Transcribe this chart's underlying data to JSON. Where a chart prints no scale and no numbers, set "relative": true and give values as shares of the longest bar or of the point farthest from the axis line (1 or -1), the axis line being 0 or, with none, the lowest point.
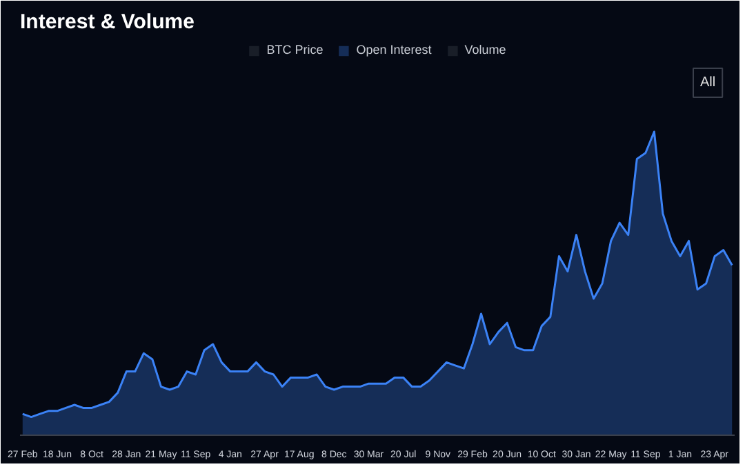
{
  "chart_data": {
    "type": "area",
    "title": "Interest & Volume",
    "annotations": [
      "All"
    ],
    "relative": true,
    "legend": "top",
    "categories": [
      "27 Feb",
      null,
      null,
      null,
      "18 Jun",
      null,
      null,
      null,
      "8 Oct",
      null,
      null,
      null,
      "28 Jan",
      null,
      null,
      null,
      "21 May",
      null,
      null,
      null,
      "11 Sep",
      null,
      null,
      null,
      "4 Jan",
      null,
      null,
      null,
      "27 Apr",
      null,
      null,
      null,
      "17 Aug",
      null,
      null,
      null,
      "8 Dec",
      null,
      null,
      null,
      "30 Mar",
      null,
      null,
      null,
      "20 Jul",
      null,
      null,
      null,
      "9 Nov",
      null,
      null,
      null,
      "29 Feb",
      null,
      null,
      null,
      "20 Jun",
      null,
      null,
      null,
      "10 Oct",
      null,
      null,
      null,
      "30 Jan",
      null,
      null,
      null,
      "22 May",
      null,
      null,
      null,
      "11 Sep",
      null,
      null,
      null,
      "1 Jan",
      null,
      null,
      null,
      "23 Apr",
      null,
      null
    ],
    "series": [
      {
        "name": "BTC Price",
        "color": "#4a4e58",
        "values": [
          null,
          null,
          null,
          null,
          null,
          null,
          null,
          null,
          null,
          null,
          null,
          null,
          null,
          null,
          null,
          null,
          null,
          null,
          null,
          null,
          null,
          null,
          null,
          null,
          null,
          null,
          null,
          null,
          null,
          null,
          null,
          null,
          null,
          null,
          null,
          null,
          null,
          null,
          null,
          null,
          null,
          null,
          null,
          null,
          null,
          null,
          null,
          null,
          null,
          null,
          null,
          null,
          null,
          null,
          null,
          null,
          null,
          null,
          null,
          null,
          null,
          null,
          null,
          null,
          null,
          null,
          null,
          null,
          null,
          null,
          null,
          null,
          null,
          null,
          null,
          null,
          null,
          null,
          null,
          null,
          null,
          null,
          null
        ]
      },
      {
        "name": "Open Interest",
        "color": "#3b82f6",
        "values": [
          0.07,
          0.06,
          0.07,
          0.08,
          0.08,
          0.09,
          0.1,
          0.09,
          0.09,
          0.1,
          0.11,
          0.14,
          0.21,
          0.21,
          0.27,
          0.25,
          0.16,
          0.15,
          0.16,
          0.21,
          0.2,
          0.28,
          0.3,
          0.24,
          0.21,
          0.21,
          0.21,
          0.24,
          0.21,
          0.2,
          0.16,
          0.19,
          0.19,
          0.19,
          0.2,
          0.16,
          0.15,
          0.16,
          0.16,
          0.16,
          0.17,
          0.17,
          0.17,
          0.19,
          0.19,
          0.16,
          0.16,
          0.18,
          0.21,
          0.24,
          0.23,
          0.22,
          0.3,
          0.4,
          0.3,
          0.34,
          0.37,
          0.29,
          0.28,
          0.28,
          0.36,
          0.39,
          0.59,
          0.54,
          0.66,
          0.54,
          0.45,
          0.5,
          0.64,
          0.7,
          0.66,
          0.91,
          0.93,
          1,
          0.73,
          0.64,
          0.59,
          0.64,
          0.48,
          0.5,
          0.59,
          0.61,
          0.56
        ]
      },
      {
        "name": "Volume",
        "color": "#4a4e58",
        "values": [
          null,
          null,
          null,
          null,
          null,
          null,
          null,
          null,
          null,
          null,
          null,
          null,
          null,
          null,
          null,
          null,
          null,
          null,
          null,
          null,
          null,
          null,
          null,
          null,
          null,
          null,
          null,
          null,
          null,
          null,
          null,
          null,
          null,
          null,
          null,
          null,
          null,
          null,
          null,
          null,
          null,
          null,
          null,
          null,
          null,
          null,
          null,
          null,
          null,
          null,
          null,
          null,
          null,
          null,
          null,
          null,
          null,
          null,
          null,
          null,
          null,
          null,
          null,
          null,
          null,
          null,
          null,
          null,
          null,
          null,
          null,
          null,
          null,
          null,
          null,
          null,
          null,
          null,
          null,
          null,
          null,
          null,
          null
        ]
      }
    ]
  }
}
